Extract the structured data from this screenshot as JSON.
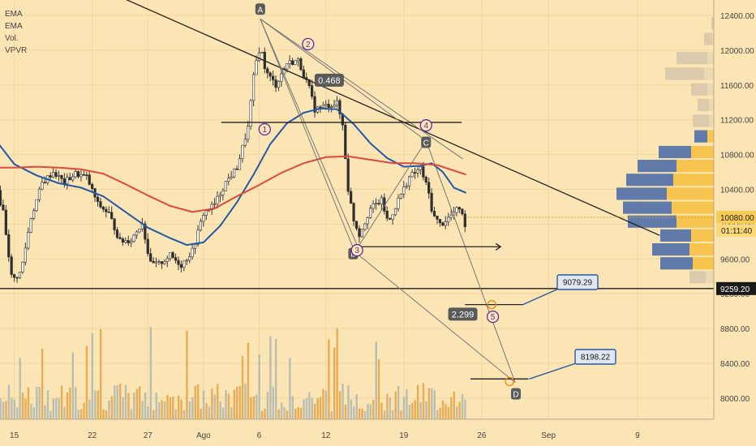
{
  "chart_data": {
    "type": "candlestick",
    "title": "",
    "xlabel": "",
    "ylabel": "",
    "ylim": [
      7800,
      12700
    ],
    "legend": [
      "EMA",
      "EMA",
      "Vol.",
      "VPVR"
    ],
    "x_ticks": [
      {
        "label": "15",
        "day": 15
      },
      {
        "label": "22",
        "day": 22
      },
      {
        "label": "27",
        "day": 27
      },
      {
        "label": "Ago",
        "day": 32
      },
      {
        "label": "6",
        "day": 37
      },
      {
        "label": "12",
        "day": 43
      },
      {
        "label": "19",
        "day": 50
      },
      {
        "label": "26",
        "day": 57
      },
      {
        "label": "Sep",
        "day": 63
      },
      {
        "label": "9",
        "day": 71
      }
    ],
    "y_ticks": [
      "12400.00",
      "12000.00",
      "11600.00",
      "11200.00",
      "10800.00",
      "10400.00",
      "10000.00",
      "9600.00",
      "9200.00",
      "8800.00",
      "8400.00",
      "8000.00"
    ],
    "current_price": {
      "label": "10080.00",
      "value": 10080,
      "countdown": "01:11:40"
    },
    "support": {
      "label": "9259.20",
      "value": 9259.2
    },
    "target_labels": [
      {
        "label": "9079.29",
        "value": 9079.29
      },
      {
        "label": "8198.22",
        "value": 8198.22
      }
    ],
    "fib_labels": [
      {
        "label": "0.468",
        "value": 11655
      },
      {
        "label": "2.299",
        "value": 8960
      }
    ],
    "pattern_points": [
      {
        "label": "A",
        "day": 37.1,
        "value": 12360
      },
      {
        "label": "B",
        "day": 45.6,
        "value": 9680
      },
      {
        "label": "C",
        "day": 52.0,
        "value": 10960
      },
      {
        "label": "D",
        "day": 60.0,
        "value": 8180
      }
    ],
    "wave_labels": [
      {
        "label": "1",
        "day": 37.5,
        "value": 11090
      },
      {
        "label": "2",
        "day": 41.4,
        "value": 12070
      },
      {
        "label": "3",
        "day": 45.8,
        "value": 9700
      },
      {
        "label": "4",
        "day": 52.0,
        "value": 11135
      },
      {
        "label": "5",
        "day": 58.0,
        "value": 8935
      }
    ],
    "series": [
      {
        "name": "EMA",
        "color": "#2358a8",
        "values": [
          [
            11.0,
            11600
          ],
          [
            13.0,
            11020
          ],
          [
            15.0,
            10690
          ],
          [
            17.0,
            10560
          ],
          [
            19.0,
            10470
          ],
          [
            21.0,
            10420
          ],
          [
            23.0,
            10320
          ],
          [
            25.0,
            10140
          ],
          [
            27.0,
            9960
          ],
          [
            29.0,
            9840
          ],
          [
            30.5,
            9760
          ],
          [
            32.0,
            9790
          ],
          [
            33.5,
            9980
          ],
          [
            35.0,
            10250
          ],
          [
            36.5,
            10570
          ],
          [
            38.0,
            10920
          ],
          [
            39.5,
            11160
          ],
          [
            41.0,
            11280
          ],
          [
            42.5,
            11330
          ],
          [
            44.0,
            11320
          ],
          [
            45.5,
            11150
          ],
          [
            47.0,
            10930
          ],
          [
            48.5,
            10760
          ],
          [
            50.0,
            10660
          ],
          [
            51.5,
            10670
          ],
          [
            52.5,
            10700
          ],
          [
            53.5,
            10600
          ],
          [
            54.5,
            10420
          ],
          [
            55.6,
            10360
          ]
        ]
      },
      {
        "name": "EMA",
        "color": "#e0483c",
        "values": [
          [
            11.0,
            10700
          ],
          [
            13.0,
            10650
          ],
          [
            15.0,
            10650
          ],
          [
            17.0,
            10660
          ],
          [
            19.0,
            10650
          ],
          [
            21.0,
            10630
          ],
          [
            23.0,
            10580
          ],
          [
            25.0,
            10460
          ],
          [
            27.0,
            10330
          ],
          [
            29.0,
            10210
          ],
          [
            31.0,
            10140
          ],
          [
            33.0,
            10180
          ],
          [
            35.0,
            10320
          ],
          [
            37.0,
            10450
          ],
          [
            39.0,
            10590
          ],
          [
            41.0,
            10700
          ],
          [
            43.0,
            10770
          ],
          [
            45.0,
            10780
          ],
          [
            47.0,
            10740
          ],
          [
            49.0,
            10700
          ],
          [
            51.0,
            10700
          ],
          [
            53.0,
            10680
          ],
          [
            55.6,
            10570
          ]
        ]
      }
    ],
    "annotations": {
      "trendline": [
        [
          18.9,
          12930
        ],
        [
          73.0,
          9870
        ]
      ],
      "level_BC": {
        "value": 11170,
        "from": 33.6,
        "to": 55.2
      },
      "level_B_arrow": {
        "value": 9740,
        "from": 45.4,
        "to": 58.7
      },
      "level_9079": {
        "value": 9075,
        "from": 55.5,
        "to": 60.7
      },
      "level_8198": {
        "value": 8220,
        "from": 56.0,
        "to": 61.2
      }
    }
  }
}
